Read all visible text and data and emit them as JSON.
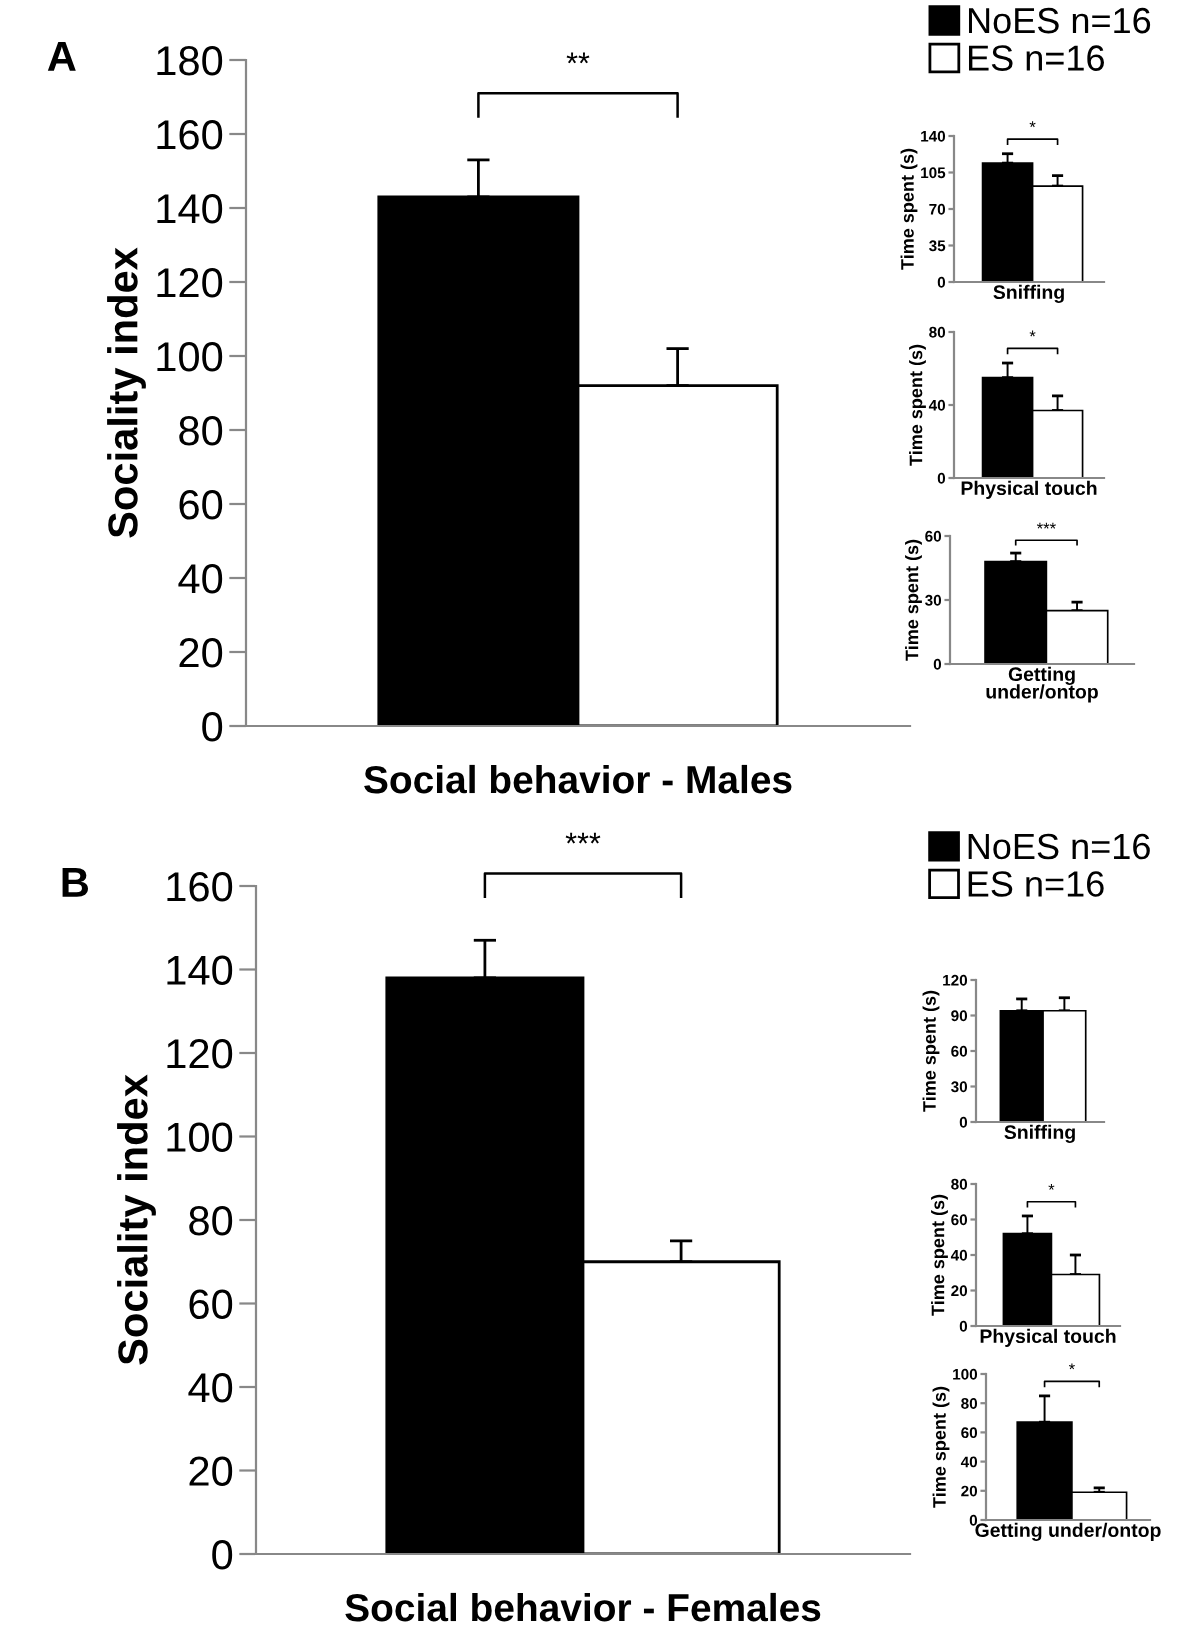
{
  "chart_data": [
    {
      "type": "bar",
      "title": "A",
      "categories": [
        null
      ],
      "xlabel": "Social behavior - Males",
      "ylabel": "Sociality index",
      "ylim": [
        0,
        180
      ],
      "yticks": [
        0,
        20,
        40,
        60,
        80,
        100,
        120,
        140,
        160,
        180
      ],
      "legend": "top right",
      "annotations": [
        "**"
      ],
      "series": [
        {
          "name": "NoES n=16",
          "color": "#000000",
          "values": [
            143
          ],
          "errors": [
            10
          ]
        },
        {
          "name": "ES n=16",
          "color": "#ffffff",
          "values": [
            92
          ],
          "errors": [
            10
          ]
        }
      ]
    },
    {
      "type": "bar",
      "categories": [
        null
      ],
      "xlabel": "Sniffing",
      "ylabel": "Time spent (s)",
      "ylim": [
        0,
        140
      ],
      "yticks": [
        0,
        35,
        70,
        105,
        140
      ],
      "annotations": [
        "*"
      ],
      "series": [
        {
          "color": "#000000",
          "values": [
            114
          ],
          "errors": [
            9
          ]
        },
        {
          "color": "#ffffff",
          "values": [
            92
          ],
          "errors": [
            10
          ]
        }
      ]
    },
    {
      "type": "bar",
      "categories": [
        null
      ],
      "xlabel": "Physical touch",
      "ylabel": "Time spent (s)",
      "ylim": [
        0,
        80
      ],
      "yticks": [
        0,
        40,
        80
      ],
      "annotations": [
        "*"
      ],
      "series": [
        {
          "color": "#000000",
          "values": [
            55
          ],
          "errors": [
            8
          ]
        },
        {
          "color": "#ffffff",
          "values": [
            37
          ],
          "errors": [
            8
          ]
        }
      ]
    },
    {
      "type": "bar",
      "categories": [
        null
      ],
      "xlabel": "Getting\nunder/ontop",
      "ylabel": "Time spent (s)",
      "ylim": [
        0,
        60
      ],
      "yticks": [
        0,
        30,
        60
      ],
      "annotations": [
        "***"
      ],
      "series": [
        {
          "color": "#000000",
          "values": [
            48
          ],
          "errors": [
            4
          ]
        },
        {
          "color": "#ffffff",
          "values": [
            25
          ],
          "errors": [
            4
          ]
        }
      ]
    },
    {
      "type": "bar",
      "title": "B",
      "categories": [
        null
      ],
      "xlabel": "Social behavior - Females",
      "ylabel": "Sociality index",
      "ylim": [
        0,
        160
      ],
      "yticks": [
        0,
        20,
        40,
        60,
        80,
        100,
        120,
        140,
        160
      ],
      "legend": "top right",
      "annotations": [
        "***"
      ],
      "series": [
        {
          "name": "NoES n=16",
          "color": "#000000",
          "values": [
            138
          ],
          "errors": [
            9
          ]
        },
        {
          "name": "ES n=16",
          "color": "#ffffff",
          "values": [
            70
          ],
          "errors": [
            5
          ]
        }
      ]
    },
    {
      "type": "bar",
      "categories": [
        null
      ],
      "xlabel": "Sniffing",
      "ylabel": "Time spent (s)",
      "ylim": [
        0,
        120
      ],
      "yticks": [
        0,
        30,
        60,
        90,
        120
      ],
      "series": [
        {
          "color": "#000000",
          "values": [
            94
          ],
          "errors": [
            10
          ]
        },
        {
          "color": "#ffffff",
          "values": [
            94
          ],
          "errors": [
            11
          ]
        }
      ]
    },
    {
      "type": "bar",
      "categories": [
        null
      ],
      "xlabel": "Physical touch",
      "ylabel": "Time spent (s)",
      "ylim": [
        0,
        80
      ],
      "yticks": [
        0,
        20,
        40,
        60,
        80
      ],
      "annotations": [
        "*"
      ],
      "series": [
        {
          "color": "#000000",
          "values": [
            52
          ],
          "errors": [
            10
          ]
        },
        {
          "color": "#ffffff",
          "values": [
            29
          ],
          "errors": [
            11
          ]
        }
      ]
    },
    {
      "type": "bar",
      "categories": [
        null
      ],
      "xlabel": "Getting under/ontop",
      "ylabel": "Time spent (s)",
      "ylim": [
        0,
        100
      ],
      "yticks": [
        0,
        20,
        40,
        60,
        80,
        100
      ],
      "annotations": [
        "*"
      ],
      "series": [
        {
          "color": "#000000",
          "values": [
            67
          ],
          "errors": [
            18
          ]
        },
        {
          "color": "#ffffff",
          "values": [
            19
          ],
          "errors": [
            3
          ]
        }
      ]
    }
  ]
}
